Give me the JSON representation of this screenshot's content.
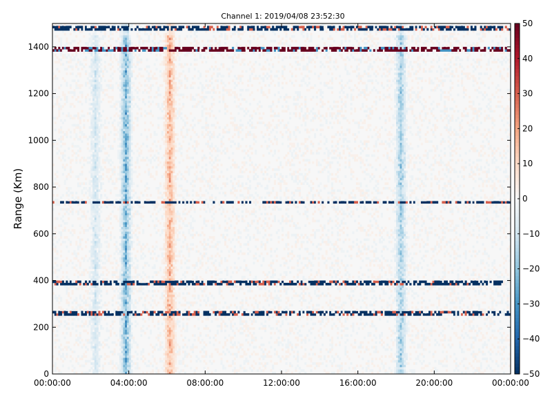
{
  "chart_data": {
    "type": "heatmap",
    "title": "Channel 1: 2019/04/08 23:52:30",
    "xlabel": "",
    "ylabel": "Range (Km)",
    "xlim_hours": [
      0,
      24
    ],
    "ylim": [
      0,
      1500
    ],
    "x_ticks": [
      {
        "hour": 0,
        "label": "00:00:00"
      },
      {
        "hour": 4,
        "label": "04:00:00"
      },
      {
        "hour": 8,
        "label": "08:00:00"
      },
      {
        "hour": 12,
        "label": "12:00:00"
      },
      {
        "hour": 16,
        "label": "16:00:00"
      },
      {
        "hour": 20,
        "label": "20:00:00"
      },
      {
        "hour": 24,
        "label": "00:00:00"
      }
    ],
    "y_ticks": [
      0,
      200,
      400,
      600,
      800,
      1000,
      1200,
      1400
    ],
    "colorbar": {
      "colormap": "RdBu_r",
      "min": -50,
      "max": 50,
      "ticks": [
        -50,
        -40,
        -30,
        -20,
        -10,
        0,
        10,
        20,
        30,
        40,
        50
      ]
    },
    "horizontal_bands_km": [
      {
        "range": 1475,
        "value": -50
      },
      {
        "range": 1385,
        "value": 50
      },
      {
        "range": 730,
        "value": -50
      },
      {
        "range": 385,
        "value": -50
      },
      {
        "range": 255,
        "value": -50
      }
    ],
    "vertical_bands_hours": [
      {
        "hour": 2.2,
        "value": -15
      },
      {
        "hour": 3.8,
        "value": -40
      },
      {
        "hour": 6.1,
        "value": 30
      },
      {
        "hour": 18.2,
        "value": -30
      }
    ]
  },
  "colors": {
    "background": "#f7f7f7",
    "red": "#67001f",
    "blue": "#053061"
  }
}
